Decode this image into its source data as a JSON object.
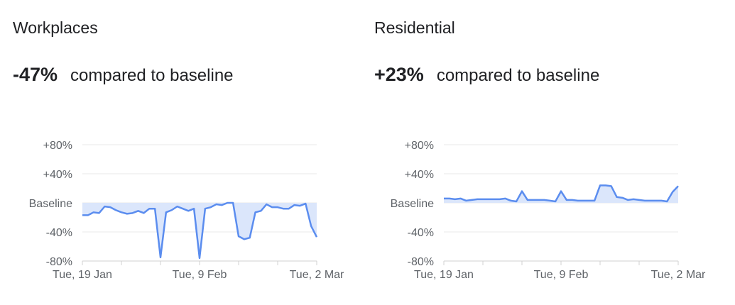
{
  "colors": {
    "line": "#5b8def",
    "fill": "#dbe6fb",
    "grid": "#e8e8e8",
    "axis": "#d0d0d0"
  },
  "chart_data": [
    {
      "type": "area",
      "title": "Workplaces",
      "headline": "-47%",
      "headline_suffix": "compared to baseline",
      "x_start": "2021-01-19",
      "x_end": "2021-03-02",
      "x_ticks": [
        "Tue, 19 Jan",
        "Tue, 9 Feb",
        "Tue, 2 Mar"
      ],
      "y_ticks": [
        "+80%",
        "+40%",
        "Baseline",
        "-40%",
        "-80%"
      ],
      "ylim": [
        -80,
        80
      ],
      "grid": true,
      "values": [
        -17,
        -17,
        -13,
        -14,
        -5,
        -6,
        -10,
        -13,
        -15,
        -14,
        -11,
        -14,
        -8,
        -8,
        -75,
        -13,
        -10,
        -5,
        -8,
        -11,
        -8,
        -76,
        -8,
        -6,
        -2,
        -3,
        0,
        0,
        -46,
        -50,
        -48,
        -13,
        -11,
        -2,
        -6,
        -6,
        -8,
        -8,
        -3,
        -4,
        -1,
        -32,
        -47
      ]
    },
    {
      "type": "area",
      "title": "Residential",
      "headline": "+23%",
      "headline_suffix": "compared to baseline",
      "x_start": "2021-01-19",
      "x_end": "2021-03-02",
      "x_ticks": [
        "Tue, 19 Jan",
        "Tue, 9 Feb",
        "Tue, 2 Mar"
      ],
      "y_ticks": [
        "+80%",
        "+40%",
        "Baseline",
        "-40%",
        "-80%"
      ],
      "ylim": [
        -80,
        80
      ],
      "grid": true,
      "values": [
        6,
        6,
        5,
        6,
        3,
        4,
        5,
        5,
        5,
        5,
        5,
        6,
        3,
        2,
        16,
        4,
        4,
        4,
        4,
        3,
        2,
        16,
        4,
        4,
        3,
        3,
        3,
        3,
        24,
        24,
        23,
        8,
        7,
        4,
        5,
        4,
        3,
        3,
        3,
        3,
        2,
        15,
        23
      ]
    }
  ]
}
